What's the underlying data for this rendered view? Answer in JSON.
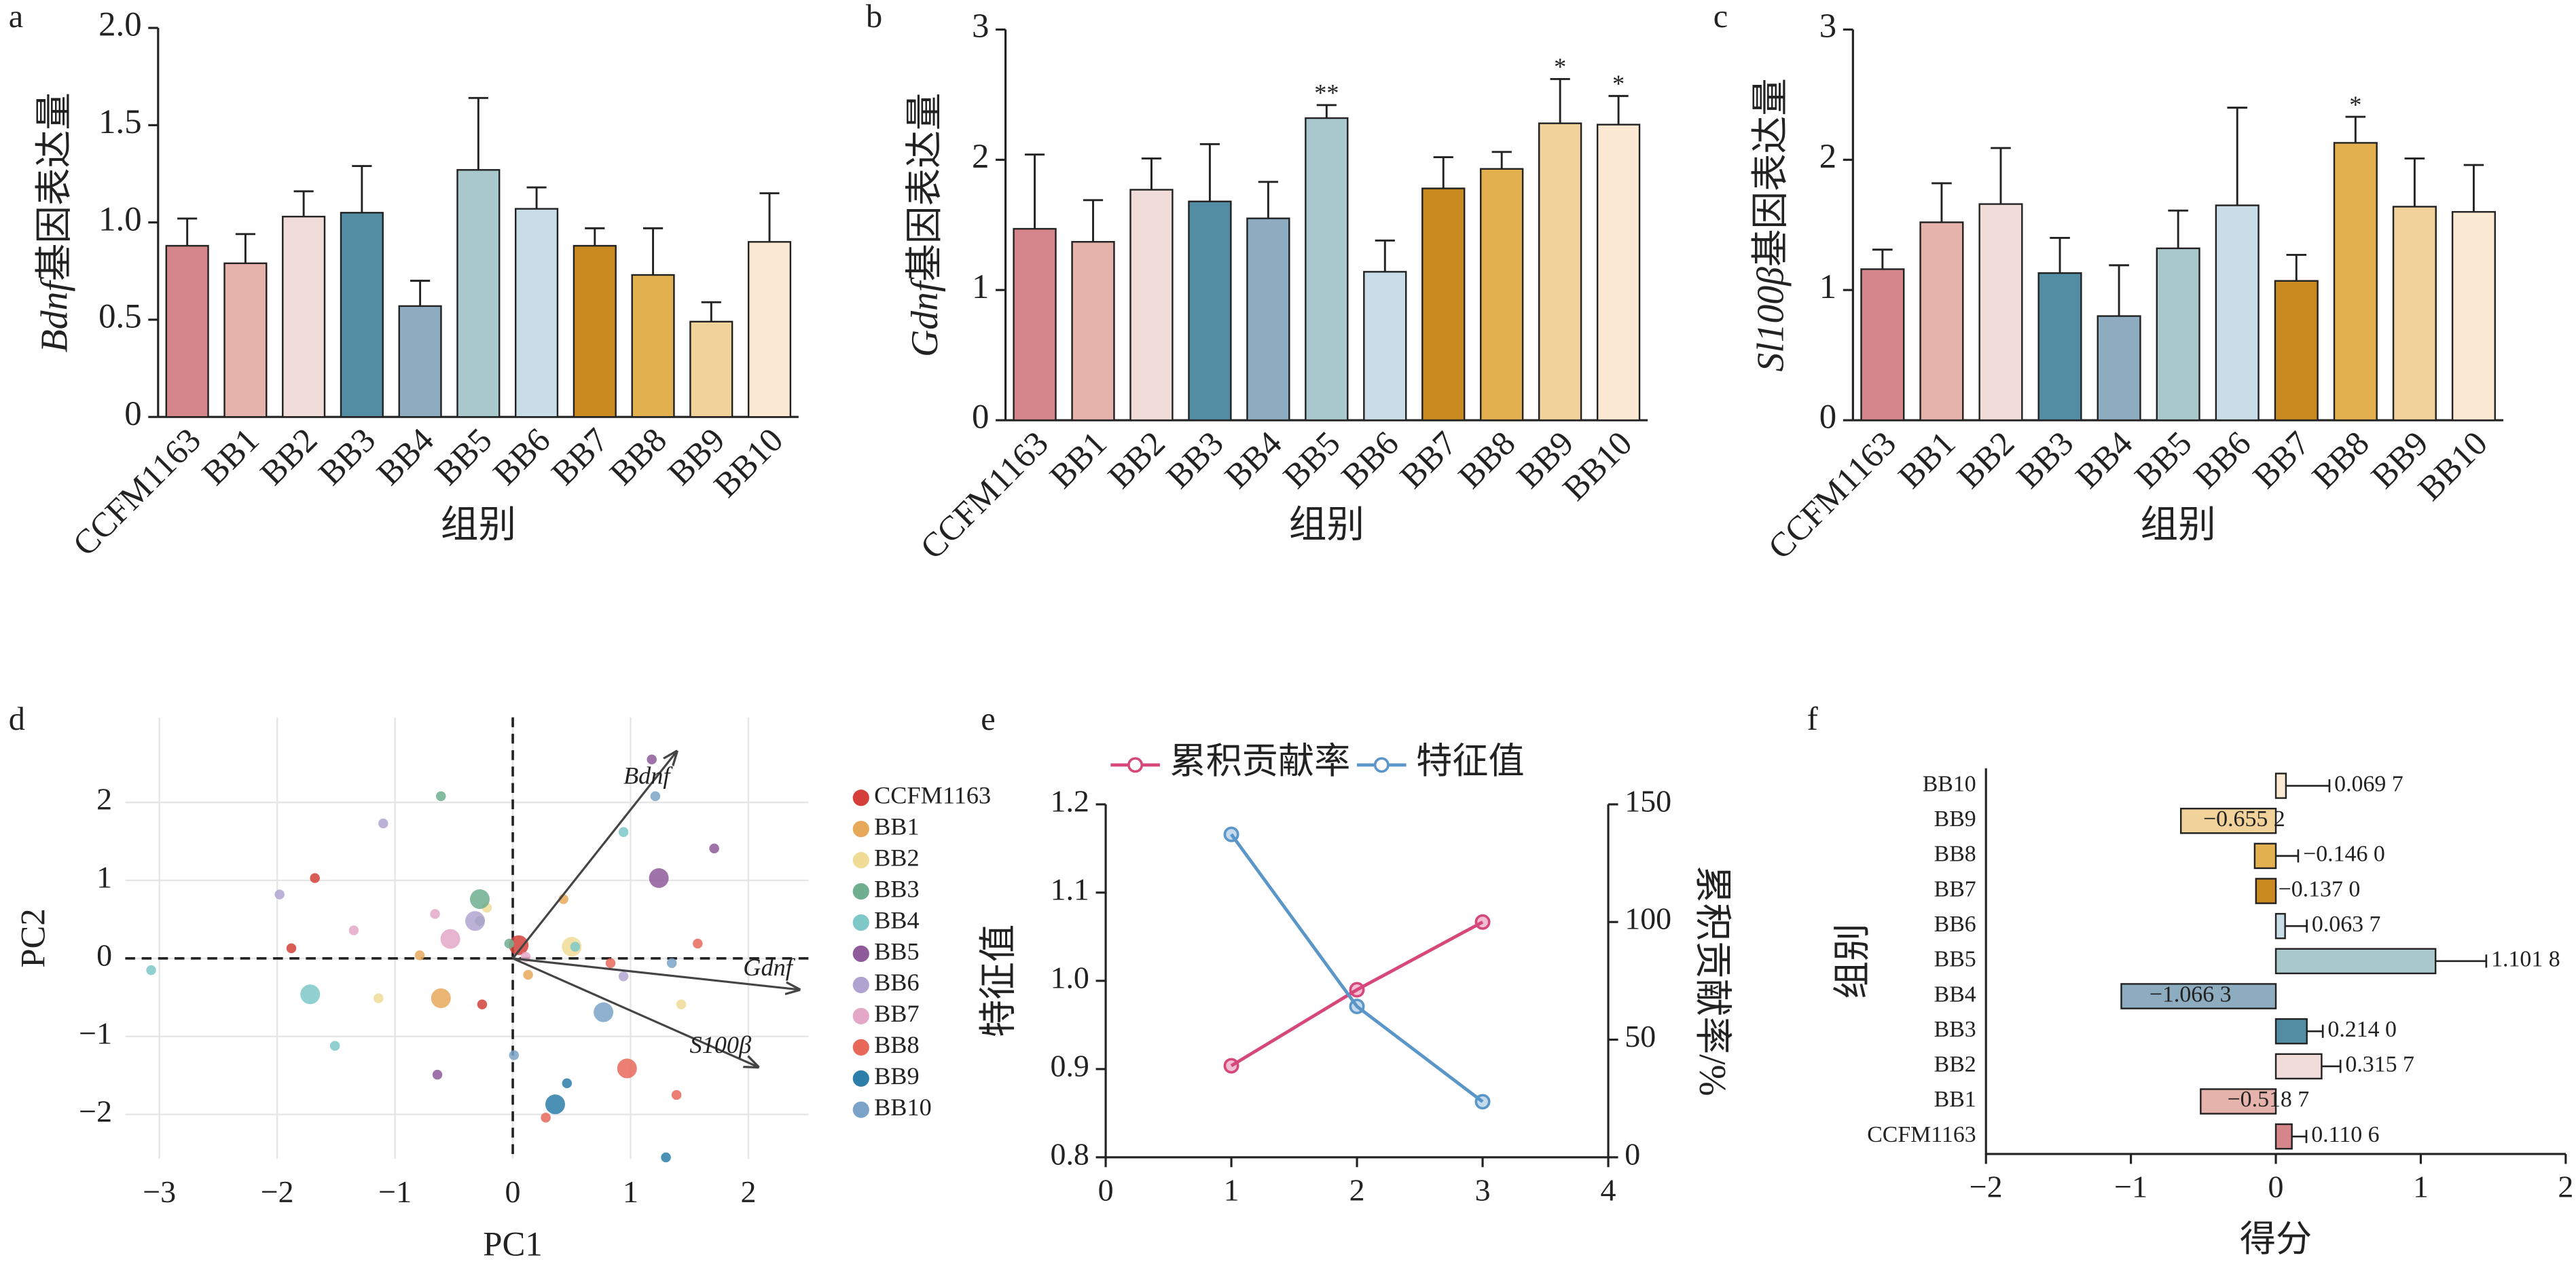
{
  "chart_data": [
    {
      "panel": "a",
      "type": "bar",
      "ylabel_gene": "Bdnf",
      "ylabel": "基因表达量",
      "xlabel": "组别",
      "categories": [
        "CCFM1163",
        "BB1",
        "BB2",
        "BB3",
        "BB4",
        "BB5",
        "BB6",
        "BB7",
        "BB8",
        "BB9",
        "BB10"
      ],
      "colors": [
        "#d4868a",
        "#e6b3ac",
        "#f0dcd8",
        "#538da4",
        "#8eacbf",
        "#a9c8cc",
        "#c9dde8",
        "#c8891f",
        "#e2b04e",
        "#f0d29a",
        "#fbe9d3"
      ],
      "values": [
        0.88,
        0.79,
        1.03,
        1.05,
        0.57,
        1.27,
        1.07,
        0.88,
        0.73,
        0.49,
        0.9
      ],
      "errors": [
        0.14,
        0.15,
        0.13,
        0.24,
        0.13,
        0.37,
        0.11,
        0.09,
        0.24,
        0.1,
        0.25
      ],
      "ylim": [
        0,
        2
      ],
      "yticks": [
        0,
        0.5,
        {
          "value": 1,
          "label": "1.0"
        },
        1.5,
        {
          "value": 2,
          "label": "2.0"
        }
      ]
    },
    {
      "panel": "b",
      "type": "bar",
      "ylabel_gene": "Gdnf",
      "ylabel": "基因表达量",
      "xlabel": "组别",
      "categories": [
        "CCFM1163",
        "BB1",
        "BB2",
        "BB3",
        "BB4",
        "BB5",
        "BB6",
        "BB7",
        "BB8",
        "BB9",
        "BB10"
      ],
      "colors": [
        "#d4868a",
        "#e6b3ac",
        "#f0dcd8",
        "#538da4",
        "#8eacbf",
        "#a9c8cc",
        "#c9dde8",
        "#c8891f",
        "#e2b04e",
        "#f0d29a",
        "#fbe9d3"
      ],
      "values": [
        1.47,
        1.37,
        1.77,
        1.68,
        1.55,
        2.32,
        1.14,
        1.78,
        1.93,
        2.28,
        2.27
      ],
      "errors": [
        0.57,
        0.32,
        0.24,
        0.44,
        0.28,
        0.1,
        0.24,
        0.24,
        0.13,
        0.34,
        0.22
      ],
      "significance": [
        null,
        null,
        null,
        null,
        null,
        "**",
        null,
        null,
        null,
        "*",
        "*"
      ],
      "ylim": [
        0,
        3
      ],
      "yticks": [
        0,
        1,
        2,
        3
      ]
    },
    {
      "panel": "c",
      "type": "bar",
      "ylabel_gene": "Sl100β",
      "ylabel": "基因表达量",
      "xlabel": "组别",
      "categories": [
        "CCFM1163",
        "BB1",
        "BB2",
        "BB3",
        "BB4",
        "BB5",
        "BB6",
        "BB7",
        "BB8",
        "BB9",
        "BB10"
      ],
      "colors": [
        "#d4868a",
        "#e6b3ac",
        "#f0dcd8",
        "#538da4",
        "#8eacbf",
        "#a9c8cc",
        "#c9dde8",
        "#c8891f",
        "#e2b04e",
        "#f0d29a",
        "#fbe9d3"
      ],
      "values": [
        1.16,
        1.52,
        1.66,
        1.13,
        0.8,
        1.32,
        1.65,
        1.07,
        2.13,
        1.64,
        1.6
      ],
      "errors": [
        0.15,
        0.3,
        0.43,
        0.27,
        0.39,
        0.29,
        0.75,
        0.2,
        0.2,
        0.37,
        0.36
      ],
      "significance": [
        null,
        null,
        null,
        null,
        null,
        null,
        null,
        null,
        "*",
        null,
        null
      ],
      "ylim": [
        0,
        3
      ],
      "yticks": [
        0,
        1,
        2,
        3
      ]
    },
    {
      "panel": "d",
      "type": "scatter",
      "xlabel": "PC1",
      "ylabel": "PC2",
      "grid": true,
      "legend": "outside right",
      "xlim": [
        -3.29,
        2.51
      ],
      "ylim": [
        -2.57,
        3.09
      ],
      "xticks": [
        {
          "value": -3,
          "label": "−3"
        },
        {
          "value": -2,
          "label": "−2"
        },
        {
          "value": -1,
          "label": "−1"
        },
        0,
        1,
        2
      ],
      "yticks": [
        {
          "value": -2,
          "label": "−2"
        },
        {
          "value": -1,
          "label": "−1"
        },
        0,
        1,
        2
      ],
      "arrows": [
        {
          "label": "Bdnf",
          "x": 1.39,
          "y": 2.65
        },
        {
          "label": "Gdnf",
          "x": 2.43,
          "y": -0.4
        },
        {
          "label": "S100β",
          "x": 2.08,
          "y": -1.39
        }
      ],
      "series": [
        {
          "name": "CCFM1163",
          "color": "#d43f3a",
          "x": [
            0.05,
            -1.68,
            -1.88,
            -0.26
          ],
          "y": [
            0.17,
            1.03,
            0.13,
            -0.59
          ],
          "sizes": [
            6,
            3,
            3,
            3
          ]
        },
        {
          "name": "BB1",
          "color": "#e8a85a",
          "x": [
            -0.61,
            0.43,
            0.13,
            -0.79
          ],
          "y": [
            -0.51,
            0.76,
            -0.21,
            0.04
          ],
          "sizes": [
            6,
            3,
            3,
            3
          ]
        },
        {
          "name": "BB2",
          "color": "#f0dc96",
          "x": [
            0.5,
            -0.22,
            1.43,
            -1.14
          ],
          "y": [
            0.15,
            0.65,
            -0.59,
            -0.51
          ],
          "sizes": [
            6,
            3,
            3,
            3
          ]
        },
        {
          "name": "BB3",
          "color": "#6fae8e",
          "x": [
            -0.28,
            -0.61,
            -0.03,
            -0.28
          ],
          "y": [
            0.76,
            2.08,
            0.19,
            0.48
          ],
          "sizes": [
            6,
            3,
            3,
            3
          ]
        },
        {
          "name": "BB4",
          "color": "#7ec8c8",
          "x": [
            -1.72,
            -3.07,
            -1.51,
            0.94,
            0.53
          ],
          "y": [
            -0.46,
            -0.15,
            -1.12,
            1.62,
            0.15
          ],
          "sizes": [
            6,
            3,
            3,
            3,
            3
          ]
        },
        {
          "name": "BB5",
          "color": "#8e5a9a",
          "x": [
            1.24,
            1.18,
            1.71,
            -0.64
          ],
          "y": [
            1.03,
            2.55,
            1.41,
            -1.49
          ],
          "sizes": [
            6,
            3,
            3,
            3
          ]
        },
        {
          "name": "BB6",
          "color": "#b0a3d0",
          "x": [
            -0.32,
            -1.1,
            -1.98,
            0.94
          ],
          "y": [
            0.48,
            1.73,
            0.82,
            -0.23
          ],
          "sizes": [
            6,
            3,
            3,
            3
          ]
        },
        {
          "name": "BB7",
          "color": "#e3a8c8",
          "x": [
            -0.53,
            -1.35,
            -0.66,
            0.11
          ],
          "y": [
            0.25,
            0.36,
            0.57,
            0.02
          ],
          "sizes": [
            6,
            3,
            3,
            3
          ]
        },
        {
          "name": "BB8",
          "color": "#e8695a",
          "x": [
            0.97,
            1.57,
            1.39,
            0.28,
            0.83
          ],
          "y": [
            -1.41,
            0.19,
            -1.75,
            -2.04,
            -0.06
          ],
          "sizes": [
            6,
            3,
            3,
            3,
            3
          ]
        },
        {
          "name": "BB9",
          "color": "#2a7ea8",
          "x": [
            0.36,
            0.46,
            1.3
          ],
          "y": [
            -1.87,
            -1.6,
            -2.55
          ],
          "sizes": [
            6,
            3,
            3
          ]
        },
        {
          "name": "BB10",
          "color": "#7ba3c8",
          "x": [
            0.77,
            1.21,
            0.01,
            1.35
          ],
          "y": [
            -0.69,
            2.08,
            -1.24,
            -0.06
          ],
          "sizes": [
            6,
            3,
            3,
            3
          ]
        }
      ]
    },
    {
      "panel": "e",
      "type": "line",
      "ylabel": "特征值",
      "y2label": "累积贡献率/%",
      "legend": "top",
      "x": [
        1,
        2,
        3
      ],
      "xlim": [
        0,
        4
      ],
      "xticks": [
        0,
        1,
        2,
        3,
        4
      ],
      "ylim": [
        0.8,
        1.2
      ],
      "yticks": [
        0.8,
        0.9,
        {
          "value": 1,
          "label": "1.0"
        },
        1.1,
        1.2
      ],
      "y2lim": [
        0,
        150
      ],
      "y2ticks": [
        0,
        50,
        100,
        150
      ],
      "series": [
        {
          "name": "累积贡献率",
          "color": "#d6477a",
          "values": [
            38.9,
            71.2,
            100
          ],
          "axis": "y2"
        },
        {
          "name": "特征值",
          "color": "#5a96c8",
          "values": [
            1.166,
            0.971,
            0.863
          ]
        }
      ]
    },
    {
      "panel": "f",
      "type": "barh",
      "xlabel": "得分",
      "ylabel": "组别",
      "categories": [
        "CCFM1163",
        "BB1",
        "BB2",
        "BB3",
        "BB4",
        "BB5",
        "BB6",
        "BB7",
        "BB8",
        "BB9",
        "BB10"
      ],
      "colors": [
        "#d4868a",
        "#e6b3ac",
        "#f0dcd8",
        "#538da4",
        "#8eacbf",
        "#a9c8cc",
        "#c9dde8",
        "#c8891f",
        "#e2b04e",
        "#f0d29a",
        "#fbe9d3"
      ],
      "values": [
        0.1106,
        -0.5187,
        0.3157,
        0.214,
        -1.0663,
        1.1018,
        0.0637,
        -0.137,
        -0.146,
        -0.6552,
        0.0697
      ],
      "value_labels": [
        "0.110 6",
        "−0.518 7",
        "0.315 7",
        "0.214 0",
        "−1.066 3",
        "1.101 8",
        "0.063 7",
        "−0.137 0",
        "−0.146 0",
        "−0.655 2",
        "0.069 7"
      ],
      "errors": [
        0.1,
        0.15,
        0.13,
        0.11,
        0.16,
        0.35,
        0.15,
        0.12,
        0.3,
        0.12,
        0.3
      ],
      "xlim": [
        -2,
        2
      ],
      "xticks": [
        {
          "value": -2,
          "label": "−2"
        },
        {
          "value": -1,
          "label": "−1"
        },
        0,
        1,
        2
      ]
    }
  ]
}
